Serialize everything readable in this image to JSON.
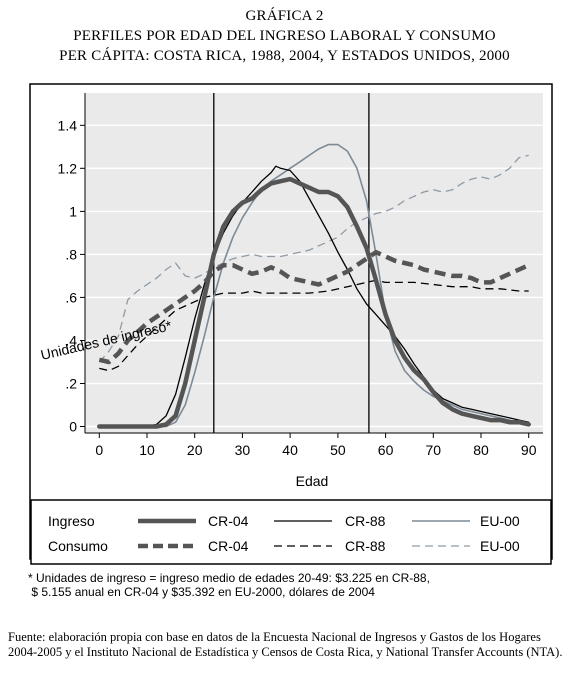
{
  "heading": {
    "line1": "GRÁFICA 2",
    "line2": "PERFILES POR EDAD DEL INGRESO LABORAL Y CONSUMO",
    "line3": "PER CÁPITA: COSTA RICA, 1988, 2004, Y ESTADOS UNIDOS, 2000"
  },
  "chart_data": {
    "type": "line",
    "xlabel": "Edad",
    "ylabel": "Unidades de ingreso*",
    "xlim": [
      -3,
      93
    ],
    "ylim": [
      -0.03,
      1.55
    ],
    "x_ticks": [
      0,
      10,
      20,
      30,
      40,
      50,
      60,
      70,
      80,
      90
    ],
    "x_tick_labels": [
      "0",
      "10",
      "20",
      "30",
      "40",
      "50",
      "60",
      "70",
      "80",
      "90"
    ],
    "y_ticks": [
      0,
      0.2,
      0.4,
      0.6,
      0.8,
      1.0,
      1.2,
      1.4
    ],
    "y_tick_labels": [
      "0",
      ".2",
      ".4",
      ".6",
      ".8",
      "1",
      "1.2",
      "1.4"
    ],
    "vertical_reference_lines": [
      24,
      56.5
    ],
    "grid": "horizontal",
    "plot_background": "#eaeaea",
    "legend_position": "bottom",
    "legend_row_labels": [
      "Ingreso",
      "Consumo"
    ],
    "series": [
      {
        "name": "CR-04",
        "group": "Ingreso",
        "style": "solid",
        "width": 4.5,
        "color": "#555555",
        "x": [
          0,
          10,
          12,
          14,
          16,
          18,
          20,
          22,
          24,
          26,
          28,
          30,
          32,
          34,
          36,
          38,
          40,
          42,
          44,
          46,
          48,
          50,
          52,
          54,
          56,
          58,
          60,
          62,
          64,
          66,
          68,
          70,
          72,
          74,
          76,
          78,
          80,
          82,
          84,
          86,
          88,
          90
        ],
        "y": [
          0,
          0,
          0,
          0.01,
          0.05,
          0.2,
          0.4,
          0.6,
          0.8,
          0.93,
          1.0,
          1.04,
          1.06,
          1.1,
          1.13,
          1.14,
          1.15,
          1.13,
          1.11,
          1.09,
          1.09,
          1.07,
          1.02,
          0.93,
          0.83,
          0.68,
          0.52,
          0.4,
          0.32,
          0.26,
          0.22,
          0.16,
          0.11,
          0.08,
          0.06,
          0.05,
          0.04,
          0.03,
          0.03,
          0.02,
          0.02,
          0.01
        ]
      },
      {
        "name": "CR-88",
        "group": "Ingreso",
        "style": "solid",
        "width": 1.3,
        "color": "#000000",
        "x": [
          0,
          10,
          12,
          14,
          16,
          18,
          20,
          22,
          24,
          26,
          28,
          30,
          32,
          34,
          36,
          37,
          38,
          40,
          42,
          44,
          46,
          48,
          50,
          52,
          54,
          56,
          58,
          60,
          62,
          64,
          66,
          68,
          70,
          72,
          74,
          76,
          78,
          80,
          82,
          84,
          86,
          88,
          90
        ],
        "y": [
          0,
          0,
          0.01,
          0.05,
          0.15,
          0.32,
          0.5,
          0.66,
          0.79,
          0.9,
          0.98,
          1.04,
          1.09,
          1.14,
          1.18,
          1.21,
          1.2,
          1.19,
          1.14,
          1.06,
          0.98,
          0.9,
          0.81,
          0.73,
          0.64,
          0.57,
          0.52,
          0.47,
          0.42,
          0.36,
          0.29,
          0.23,
          0.17,
          0.13,
          0.11,
          0.09,
          0.08,
          0.07,
          0.06,
          0.05,
          0.04,
          0.03,
          0.02
        ]
      },
      {
        "name": "EU-00",
        "group": "Ingreso",
        "style": "solid",
        "width": 1.6,
        "color": "#7d8a96",
        "x": [
          0,
          10,
          12,
          14,
          16,
          18,
          20,
          22,
          24,
          26,
          28,
          30,
          32,
          34,
          36,
          38,
          40,
          42,
          44,
          46,
          48,
          50,
          52,
          54,
          56,
          58,
          60,
          62,
          64,
          66,
          68,
          70,
          72,
          74,
          76,
          78,
          80,
          82,
          84,
          86,
          88,
          90
        ],
        "y": [
          0,
          0,
          0,
          0,
          0.02,
          0.1,
          0.25,
          0.42,
          0.6,
          0.76,
          0.88,
          0.97,
          1.04,
          1.1,
          1.14,
          1.17,
          1.2,
          1.23,
          1.26,
          1.29,
          1.31,
          1.31,
          1.28,
          1.2,
          1.05,
          0.8,
          0.52,
          0.35,
          0.26,
          0.21,
          0.17,
          0.14,
          0.12,
          0.1,
          0.08,
          0.07,
          0.06,
          0.05,
          0.04,
          0.03,
          0.02,
          0.01
        ]
      },
      {
        "name": "CR-04",
        "group": "Consumo",
        "style": "dashed",
        "width": 4.5,
        "color": "#555555",
        "x": [
          0,
          2,
          4,
          6,
          8,
          10,
          12,
          14,
          16,
          18,
          20,
          22,
          24,
          26,
          28,
          30,
          32,
          34,
          36,
          38,
          40,
          42,
          44,
          46,
          48,
          50,
          52,
          54,
          56,
          58,
          60,
          62,
          64,
          66,
          68,
          70,
          72,
          74,
          76,
          78,
          80,
          82,
          84,
          86,
          88,
          90
        ],
        "y": [
          0.31,
          0.3,
          0.34,
          0.4,
          0.44,
          0.48,
          0.51,
          0.54,
          0.57,
          0.6,
          0.63,
          0.67,
          0.72,
          0.75,
          0.75,
          0.73,
          0.71,
          0.72,
          0.74,
          0.72,
          0.69,
          0.68,
          0.67,
          0.66,
          0.68,
          0.7,
          0.72,
          0.75,
          0.78,
          0.81,
          0.79,
          0.77,
          0.76,
          0.75,
          0.73,
          0.72,
          0.71,
          0.7,
          0.7,
          0.69,
          0.67,
          0.67,
          0.69,
          0.71,
          0.73,
          0.75
        ]
      },
      {
        "name": "CR-88",
        "group": "Consumo",
        "style": "dashed",
        "width": 1.3,
        "color": "#000000",
        "x": [
          0,
          2,
          4,
          6,
          8,
          10,
          12,
          14,
          16,
          18,
          20,
          22,
          24,
          26,
          28,
          30,
          32,
          34,
          36,
          38,
          40,
          44,
          48,
          52,
          56,
          58,
          60,
          62,
          66,
          70,
          74,
          78,
          80,
          84,
          88,
          90
        ],
        "y": [
          0.27,
          0.26,
          0.28,
          0.33,
          0.38,
          0.42,
          0.46,
          0.5,
          0.54,
          0.56,
          0.58,
          0.6,
          0.61,
          0.62,
          0.62,
          0.62,
          0.63,
          0.62,
          0.62,
          0.62,
          0.62,
          0.62,
          0.63,
          0.65,
          0.67,
          0.68,
          0.67,
          0.67,
          0.67,
          0.66,
          0.65,
          0.65,
          0.64,
          0.64,
          0.63,
          0.63
        ]
      },
      {
        "name": "EU-00",
        "group": "Consumo",
        "style": "dashed",
        "width": 1.3,
        "color": "#8e9aa6",
        "x": [
          0,
          2,
          4,
          6,
          8,
          10,
          12,
          14,
          16,
          18,
          20,
          22,
          24,
          26,
          28,
          30,
          32,
          34,
          36,
          38,
          40,
          44,
          48,
          50,
          52,
          54,
          56,
          58,
          60,
          62,
          64,
          66,
          68,
          70,
          72,
          74,
          76,
          78,
          80,
          82,
          84,
          86,
          88,
          90
        ],
        "y": [
          0.3,
          0.35,
          0.42,
          0.59,
          0.63,
          0.66,
          0.69,
          0.73,
          0.76,
          0.7,
          0.69,
          0.71,
          0.74,
          0.76,
          0.78,
          0.79,
          0.8,
          0.79,
          0.79,
          0.79,
          0.8,
          0.82,
          0.86,
          0.88,
          0.92,
          0.95,
          0.97,
          0.99,
          1.0,
          1.02,
          1.05,
          1.07,
          1.09,
          1.1,
          1.09,
          1.1,
          1.13,
          1.15,
          1.16,
          1.15,
          1.17,
          1.2,
          1.25,
          1.26
        ]
      }
    ]
  },
  "legend": {
    "rows": [
      {
        "group_label": "Ingreso",
        "entries": [
          "CR-04",
          "CR-88",
          "EU-00"
        ]
      },
      {
        "group_label": "Consumo",
        "entries": [
          "CR-04",
          "CR-88",
          "EU-00"
        ]
      }
    ]
  },
  "note": {
    "line1": "* Unidades de ingreso = ingreso medio de edades 20-49: $3.225 en CR-88,",
    "line2": " $ 5.155 anual en CR-04 y $35.392 en EU-2000, dólares de 2004"
  },
  "source": "Fuente: elaboración propia con base en datos de la Encuesta Nacional de Ingresos y Gastos de los Hogares 2004-2005 y el Instituto Nacional de Estadística y Censos de Costa Rica, y National Transfer Accounts (NTA)."
}
